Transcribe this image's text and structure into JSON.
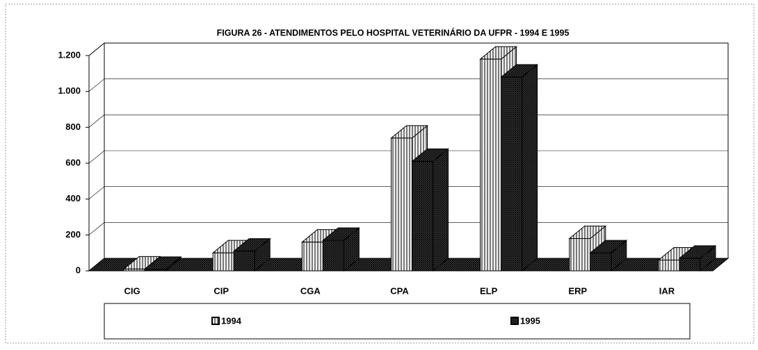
{
  "chart_data": {
    "type": "bar3d",
    "title": "FIGURA 26 - ATENDIMENTOS PELO HOSPITAL VETERINÁRIO DA UFPR - 1994 E 1995",
    "categories": [
      "CIG",
      "CIP",
      "CGA",
      "CPA",
      "ELP",
      "ERP",
      "IAR"
    ],
    "series": [
      {
        "name": "1994",
        "color": "#f2f2f2",
        "values": [
          10,
          100,
          160,
          740,
          1180,
          180,
          60
        ]
      },
      {
        "name": "1995",
        "color": "#555555",
        "values": [
          8,
          110,
          170,
          610,
          1080,
          100,
          70
        ]
      }
    ],
    "ylim": [
      0,
      1200
    ],
    "yticks": [
      0,
      200,
      400,
      600,
      800,
      {
        "value": 1000,
        "label": "1.000"
      },
      {
        "value": 1200,
        "label": "1.200"
      }
    ],
    "grid": true,
    "legend": "bottom"
  }
}
